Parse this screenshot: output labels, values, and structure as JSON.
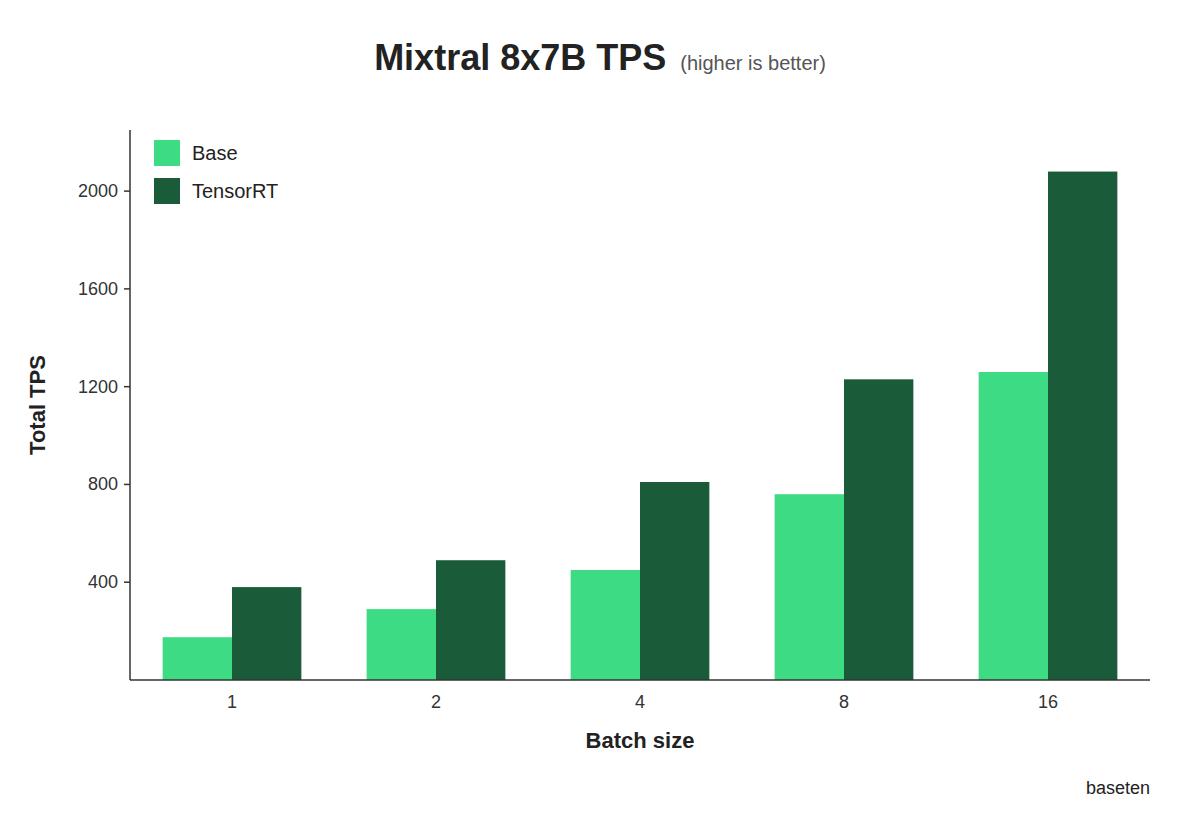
{
  "chart_data": {
    "type": "bar",
    "title": "Mixtral 8x7B TPS",
    "subtitle": "(higher is better)",
    "x_label": "Batch size",
    "y_label": "Total TPS",
    "categories": [
      "1",
      "2",
      "4",
      "8",
      "16"
    ],
    "series": [
      {
        "name": "Base",
        "color": "#3ddc84",
        "values": [
          175,
          290,
          450,
          760,
          1260
        ]
      },
      {
        "name": "TensorRT",
        "color": "#1a5c3a",
        "values": [
          380,
          490,
          810,
          1230,
          2080
        ]
      }
    ],
    "ylim": [
      0,
      2250
    ],
    "yticks": [
      400,
      800,
      1200,
      1600,
      2000
    ],
    "grid": false,
    "legend": "upper left",
    "annotations": [
      "baseten"
    ]
  }
}
